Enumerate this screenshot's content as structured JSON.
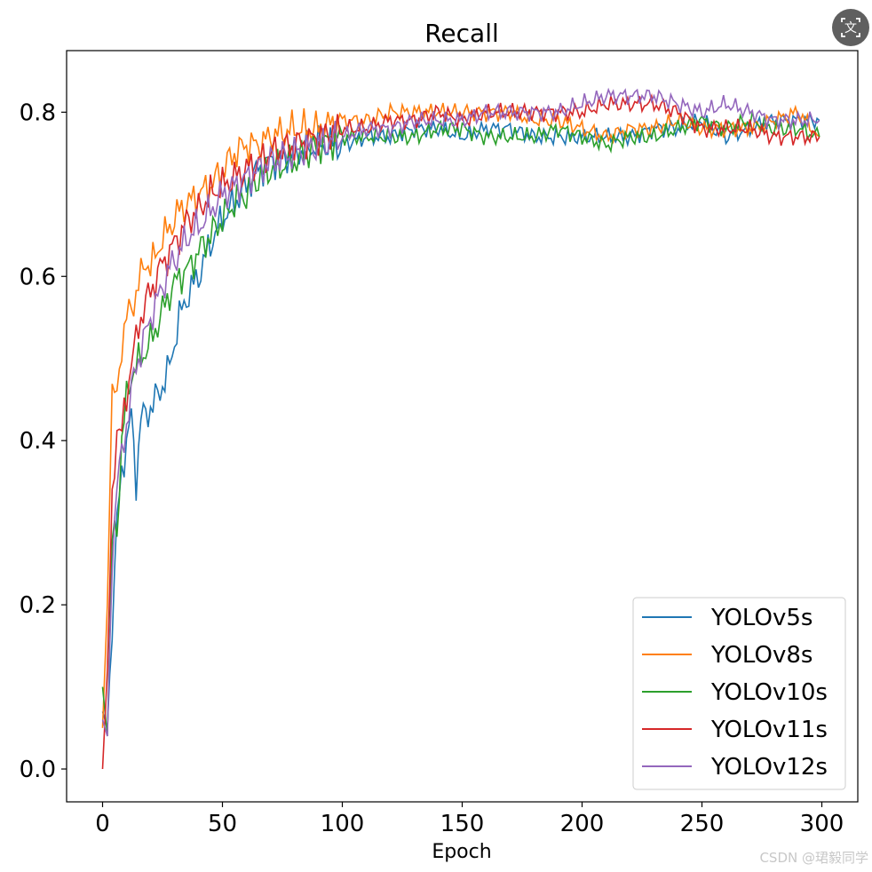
{
  "ui": {
    "translate_icon": "translate-icon",
    "watermark": "CSDN @珺毅同学"
  },
  "chart_data": {
    "type": "line",
    "title": "Recall",
    "xlabel": "Epoch",
    "ylabel": "",
    "xlim": [
      -15,
      315
    ],
    "ylim": [
      -0.04,
      0.875
    ],
    "xticks": [
      0,
      50,
      100,
      150,
      200,
      250,
      300
    ],
    "yticks": [
      0.0,
      0.2,
      0.4,
      0.6,
      0.8
    ],
    "ytick_labels": [
      "0.0",
      "0.2",
      "0.4",
      "0.6",
      "0.8"
    ],
    "grid": false,
    "legend": "lower-right",
    "series": [
      {
        "name": "YOLOv5s",
        "color": "#1f77b4",
        "x": [
          0,
          2,
          4,
          6,
          8,
          10,
          12,
          14,
          16,
          18,
          20,
          24,
          28,
          32,
          36,
          40,
          45,
          50,
          55,
          60,
          65,
          70,
          80,
          90,
          100,
          110,
          120,
          130,
          140,
          150,
          160,
          170,
          180,
          190,
          200,
          210,
          220,
          230,
          240,
          250,
          260,
          270,
          280,
          290,
          299
        ],
        "y": [
          0.07,
          0.05,
          0.18,
          0.3,
          0.36,
          0.4,
          0.43,
          0.35,
          0.43,
          0.43,
          0.44,
          0.46,
          0.49,
          0.55,
          0.58,
          0.6,
          0.64,
          0.67,
          0.69,
          0.71,
          0.73,
          0.74,
          0.75,
          0.76,
          0.76,
          0.77,
          0.77,
          0.78,
          0.78,
          0.77,
          0.78,
          0.78,
          0.77,
          0.77,
          0.77,
          0.77,
          0.77,
          0.78,
          0.78,
          0.79,
          0.77,
          0.78,
          0.79,
          0.79,
          0.79
        ]
      },
      {
        "name": "YOLOv8s",
        "color": "#ff7f0e",
        "x": [
          0,
          2,
          4,
          6,
          8,
          10,
          12,
          14,
          16,
          18,
          20,
          24,
          28,
          32,
          36,
          40,
          45,
          50,
          55,
          60,
          65,
          70,
          80,
          90,
          100,
          110,
          120,
          130,
          140,
          150,
          160,
          170,
          180,
          190,
          200,
          210,
          220,
          230,
          240,
          250,
          260,
          270,
          280,
          290,
          299
        ],
        "y": [
          0.05,
          0.2,
          0.46,
          0.45,
          0.52,
          0.55,
          0.56,
          0.58,
          0.6,
          0.62,
          0.61,
          0.64,
          0.66,
          0.68,
          0.69,
          0.7,
          0.71,
          0.73,
          0.75,
          0.76,
          0.76,
          0.77,
          0.78,
          0.78,
          0.79,
          0.79,
          0.8,
          0.8,
          0.8,
          0.8,
          0.8,
          0.8,
          0.79,
          0.79,
          0.78,
          0.77,
          0.78,
          0.78,
          0.79,
          0.78,
          0.78,
          0.78,
          0.79,
          0.8,
          0.77
        ]
      },
      {
        "name": "YOLOv10s",
        "color": "#2ca02c",
        "x": [
          0,
          2,
          4,
          6,
          8,
          10,
          12,
          14,
          16,
          18,
          20,
          24,
          28,
          32,
          36,
          40,
          45,
          50,
          55,
          60,
          65,
          70,
          80,
          90,
          100,
          110,
          120,
          130,
          140,
          150,
          160,
          170,
          180,
          190,
          200,
          210,
          220,
          230,
          240,
          250,
          260,
          270,
          280,
          290,
          299
        ],
        "y": [
          0.1,
          0.04,
          0.28,
          0.29,
          0.4,
          0.45,
          0.48,
          0.49,
          0.5,
          0.51,
          0.52,
          0.55,
          0.58,
          0.6,
          0.61,
          0.63,
          0.65,
          0.67,
          0.69,
          0.7,
          0.72,
          0.73,
          0.74,
          0.76,
          0.77,
          0.77,
          0.77,
          0.77,
          0.78,
          0.78,
          0.77,
          0.77,
          0.77,
          0.78,
          0.77,
          0.76,
          0.77,
          0.77,
          0.78,
          0.79,
          0.78,
          0.79,
          0.78,
          0.78,
          0.77
        ]
      },
      {
        "name": "YOLOv11s",
        "color": "#d62728",
        "x": [
          0,
          2,
          4,
          6,
          8,
          10,
          12,
          14,
          16,
          18,
          20,
          24,
          28,
          32,
          36,
          40,
          45,
          50,
          55,
          60,
          65,
          70,
          80,
          90,
          100,
          110,
          120,
          130,
          140,
          150,
          160,
          170,
          180,
          190,
          200,
          210,
          220,
          230,
          240,
          250,
          260,
          270,
          280,
          290,
          299
        ],
        "y": [
          0.0,
          0.12,
          0.32,
          0.42,
          0.41,
          0.45,
          0.5,
          0.52,
          0.55,
          0.57,
          0.58,
          0.61,
          0.63,
          0.65,
          0.67,
          0.68,
          0.7,
          0.71,
          0.72,
          0.73,
          0.74,
          0.75,
          0.76,
          0.77,
          0.78,
          0.78,
          0.79,
          0.79,
          0.8,
          0.79,
          0.8,
          0.8,
          0.8,
          0.8,
          0.8,
          0.81,
          0.81,
          0.81,
          0.8,
          0.78,
          0.78,
          0.78,
          0.77,
          0.77,
          0.77
        ]
      },
      {
        "name": "YOLOv12s",
        "color": "#9467bd",
        "x": [
          0,
          2,
          4,
          6,
          8,
          10,
          12,
          14,
          16,
          18,
          20,
          24,
          28,
          32,
          36,
          40,
          45,
          50,
          55,
          60,
          65,
          70,
          80,
          90,
          100,
          110,
          120,
          130,
          140,
          150,
          160,
          170,
          180,
          190,
          200,
          210,
          220,
          230,
          240,
          250,
          260,
          270,
          280,
          290,
          299
        ],
        "y": [
          0.06,
          0.04,
          0.26,
          0.35,
          0.38,
          0.42,
          0.46,
          0.49,
          0.51,
          0.53,
          0.55,
          0.58,
          0.61,
          0.63,
          0.65,
          0.66,
          0.68,
          0.7,
          0.71,
          0.72,
          0.73,
          0.74,
          0.75,
          0.76,
          0.77,
          0.78,
          0.78,
          0.79,
          0.79,
          0.79,
          0.8,
          0.8,
          0.8,
          0.8,
          0.81,
          0.82,
          0.82,
          0.82,
          0.81,
          0.8,
          0.81,
          0.8,
          0.79,
          0.79,
          0.79
        ]
      }
    ]
  }
}
